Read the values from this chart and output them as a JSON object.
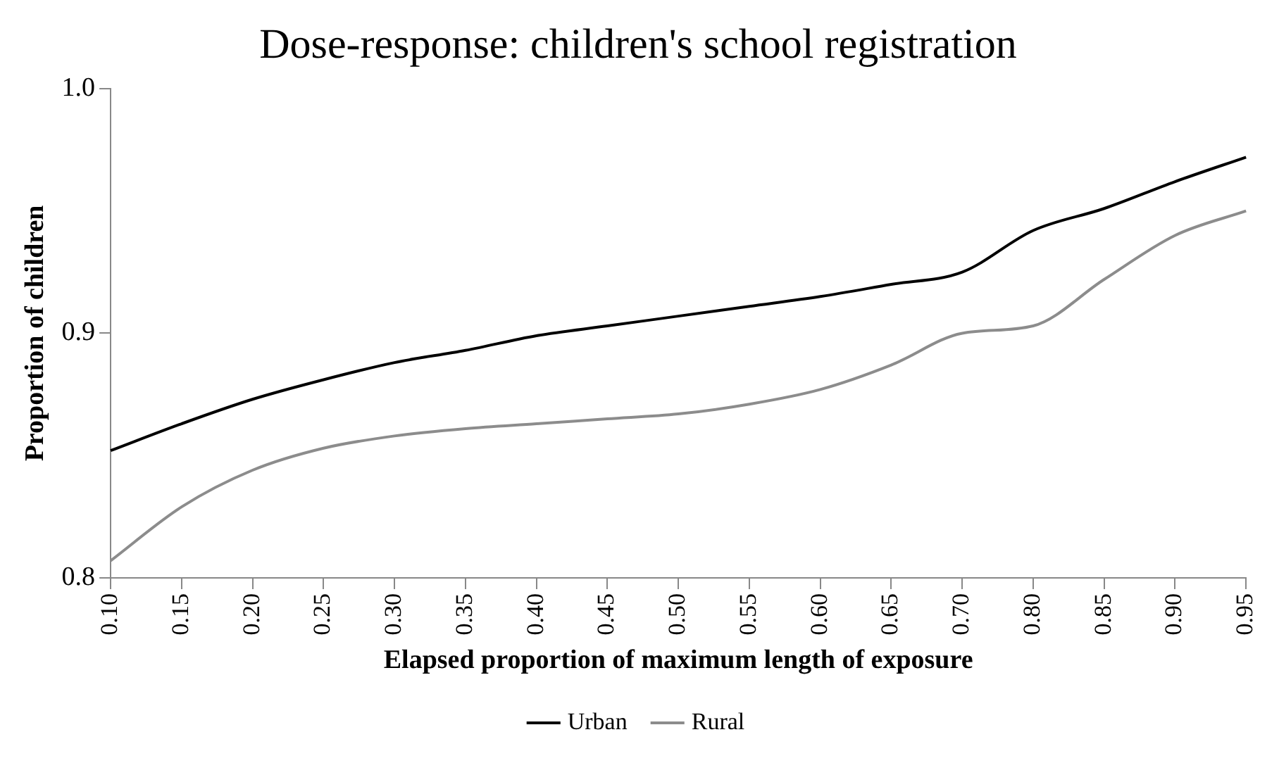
{
  "chart_data": {
    "type": "line",
    "title": "Dose-response: children's school registration",
    "xlabel": "Elapsed proportion of maximum length of exposure",
    "ylabel": "Proportion of children",
    "categories": [
      "0.10",
      "0.15",
      "0.20",
      "0.25",
      "0.30",
      "0.35",
      "0.40",
      "0.45",
      "0.50",
      "0.55",
      "0.60",
      "0.65",
      "0.70",
      "0.80",
      "0.85",
      "0.90",
      "0.95"
    ],
    "series": [
      {
        "name": "Urban",
        "color": "#000000",
        "values": [
          0.852,
          0.863,
          0.873,
          0.881,
          0.888,
          0.893,
          0.899,
          0.903,
          0.907,
          0.911,
          0.915,
          0.92,
          0.925,
          0.942,
          0.951,
          0.962,
          0.972
        ]
      },
      {
        "name": "Rural",
        "color": "#8c8c8c",
        "values": [
          0.807,
          0.829,
          0.844,
          0.853,
          0.858,
          0.861,
          0.863,
          0.865,
          0.867,
          0.871,
          0.877,
          0.887,
          0.9,
          0.903,
          0.922,
          0.94,
          0.95
        ]
      }
    ],
    "ylim": [
      0.8,
      1.0
    ],
    "yticks": [
      {
        "value": 0.8,
        "label": "0.8"
      },
      {
        "value": 0.9,
        "label": "0.9"
      },
      {
        "value": 1.0,
        "label": "1.0"
      }
    ],
    "grid": false,
    "legend": "bottom",
    "marker": "none",
    "line_style": "solid"
  }
}
